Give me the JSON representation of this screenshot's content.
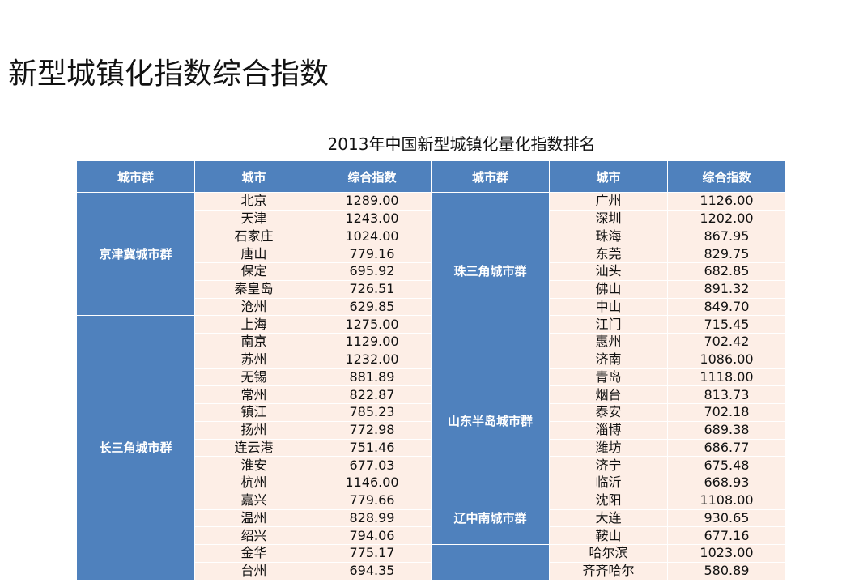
{
  "title": "新型城镇化指数综合指数",
  "table": {
    "caption": "2013年中国新型城镇化量化指数排名",
    "headers": [
      "城市群",
      "城市",
      "综合指数",
      "城市群",
      "城市",
      "综合指数"
    ],
    "left": [
      {
        "group": "京津冀城市群",
        "rows": [
          [
            "北京",
            "1289.00"
          ],
          [
            "天津",
            "1243.00"
          ],
          [
            "石家庄",
            "1024.00"
          ],
          [
            "唐山",
            "779.16"
          ],
          [
            "保定",
            "695.92"
          ],
          [
            "秦皇岛",
            "726.51"
          ],
          [
            "沧州",
            "629.85"
          ]
        ]
      },
      {
        "group": "长三角城市群",
        "rows": [
          [
            "上海",
            "1275.00"
          ],
          [
            "南京",
            "1129.00"
          ],
          [
            "苏州",
            "1232.00"
          ],
          [
            "无锡",
            "881.89"
          ],
          [
            "常州",
            "822.87"
          ],
          [
            "镇江",
            "785.23"
          ],
          [
            "扬州",
            "772.98"
          ],
          [
            "连云港",
            "751.46"
          ],
          [
            "淮安",
            "677.03"
          ],
          [
            "杭州",
            "1146.00"
          ],
          [
            "嘉兴",
            "779.66"
          ],
          [
            "温州",
            "828.99"
          ],
          [
            "绍兴",
            "794.06"
          ],
          [
            "金华",
            "775.17"
          ],
          [
            "台州",
            "694.35"
          ]
        ]
      }
    ],
    "right": [
      {
        "group": "珠三角城市群",
        "rows": [
          [
            "广州",
            "1126.00"
          ],
          [
            "深圳",
            "1202.00"
          ],
          [
            "珠海",
            "867.95"
          ],
          [
            "东莞",
            "829.75"
          ],
          [
            "汕头",
            "682.85"
          ],
          [
            "佛山",
            "891.32"
          ],
          [
            "中山",
            "849.70"
          ],
          [
            "江门",
            "715.45"
          ],
          [
            "惠州",
            "702.42"
          ]
        ]
      },
      {
        "group": "山东半岛城市群",
        "rows": [
          [
            "济南",
            "1086.00"
          ],
          [
            "青岛",
            "1118.00"
          ],
          [
            "烟台",
            "813.73"
          ],
          [
            "泰安",
            "702.18"
          ],
          [
            "淄博",
            "689.38"
          ],
          [
            "潍坊",
            "686.77"
          ],
          [
            "济宁",
            "675.48"
          ],
          [
            "临沂",
            "668.93"
          ]
        ]
      },
      {
        "group": "辽中南城市群",
        "rows": [
          [
            "沈阳",
            "1108.00"
          ],
          [
            "大连",
            "930.65"
          ],
          [
            "鞍山",
            "677.16"
          ]
        ]
      },
      {
        "group": "",
        "rows": [
          [
            "哈尔滨",
            "1023.00"
          ],
          [
            "齐齐哈尔",
            "580.89"
          ]
        ]
      }
    ]
  }
}
